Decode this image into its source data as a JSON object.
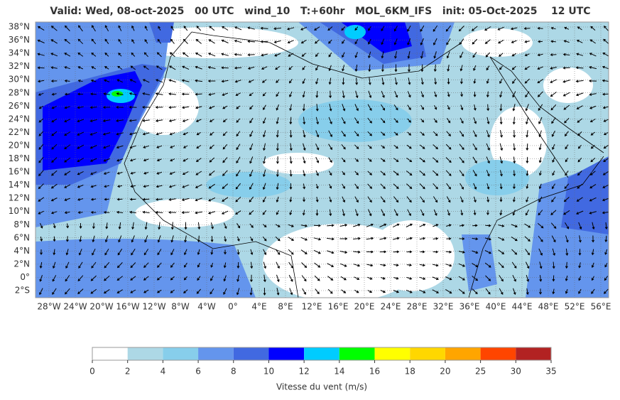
{
  "header": {
    "title": "Valid: Wed, 08-oct-2025   00 UTC   wind_10   T:+60hr   MOL_6KM_IFS   init: 05-Oct-2025    12 UTC"
  },
  "map": {
    "lat_labels": [
      "38°N",
      "36°N",
      "34°N",
      "32°N",
      "30°N",
      "28°N",
      "26°N",
      "24°N",
      "22°N",
      "20°N",
      "18°N",
      "16°N",
      "14°N",
      "12°N",
      "10°N",
      "8°N",
      "6°N",
      "4°N",
      "2°N",
      "0°",
      "2°S"
    ],
    "lon_labels": [
      "28°W",
      "24°W",
      "20°W",
      "16°W",
      "12°W",
      "8°W",
      "4°W",
      "0°",
      "4°E",
      "8°E",
      "12°E",
      "16°E",
      "20°E",
      "24°E",
      "28°E",
      "32°E",
      "36°E",
      "40°E",
      "44°E",
      "48°E",
      "52°E",
      "56°E"
    ]
  },
  "colorbar": {
    "levels": [
      0,
      2,
      4,
      6,
      8,
      10,
      12,
      14,
      16,
      18,
      20,
      25,
      30,
      35
    ],
    "colors": [
      "#ffffff",
      "#add8e6",
      "#87ceeb",
      "#6495ed",
      "#4169e1",
      "#0000ff",
      "#00ccff",
      "#00ff00",
      "#ffff00",
      "#ffd700",
      "#ffa500",
      "#ff4500",
      "#b22222"
    ],
    "label": "Vitesse du vent (m/s)"
  }
}
